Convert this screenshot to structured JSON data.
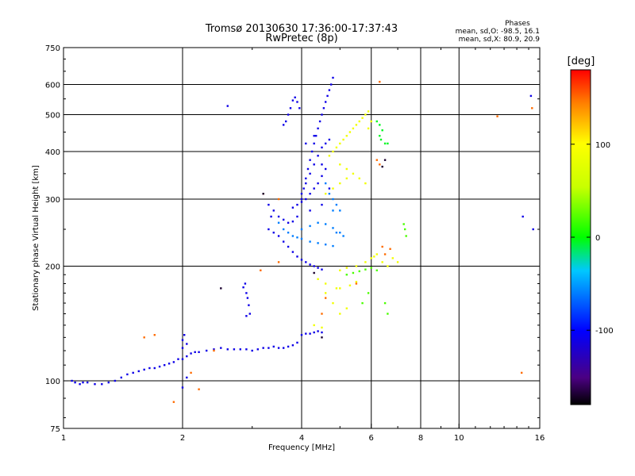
{
  "chart_data": {
    "type": "scatter",
    "title": "Tromsø 20130630 17:36:00-17:37:43",
    "subtitle": "RwPretec (8p)",
    "xlabel": "Frequency [MHz]",
    "ylabel": "Stationary phase Virtual Height [km]",
    "x_scale": "log",
    "y_scale": "log",
    "xlim": [
      1,
      16
    ],
    "ylim": [
      75,
      750
    ],
    "grid": true,
    "x_ticks": [
      "1",
      "2",
      "4",
      "6",
      "8",
      "10",
      "16"
    ],
    "x_tick_values": [
      1,
      2,
      4,
      6,
      8,
      10,
      16
    ],
    "y_ticks": [
      "75",
      "100",
      "200",
      "300",
      "400",
      "500",
      "600",
      "750"
    ],
    "y_tick_values": [
      75,
      100,
      200,
      300,
      400,
      500,
      600,
      750
    ],
    "colorbar": {
      "unit": "[deg]",
      "range": [
        -180,
        180
      ],
      "ticks": [
        "100",
        "0",
        "-100"
      ],
      "tick_values": [
        100,
        0,
        -100
      ]
    },
    "stats": {
      "header": "Phases",
      "line_o": "mean, sd,O: -98.5, 16.1",
      "line_x": "mean, sd,X:  80.9, 20.9"
    },
    "series": [
      {
        "phase": -110,
        "points": [
          [
            1.05,
            100
          ],
          [
            1.07,
            99
          ],
          [
            1.1,
            98
          ],
          [
            1.12,
            99
          ],
          [
            1.15,
            99
          ],
          [
            1.2,
            98
          ],
          [
            1.25,
            98
          ],
          [
            1.3,
            99
          ],
          [
            1.35,
            100
          ],
          [
            1.4,
            102
          ],
          [
            1.45,
            104
          ],
          [
            1.5,
            105
          ],
          [
            1.55,
            106
          ],
          [
            1.6,
            107
          ],
          [
            1.65,
            108
          ],
          [
            1.7,
            108
          ],
          [
            1.75,
            109
          ],
          [
            1.8,
            110
          ],
          [
            1.85,
            111
          ],
          [
            1.9,
            112
          ],
          [
            1.95,
            114
          ],
          [
            2.0,
            114
          ],
          [
            2.05,
            116
          ],
          [
            2.1,
            118
          ],
          [
            2.15,
            119
          ],
          [
            2.2,
            119
          ],
          [
            2.3,
            120
          ],
          [
            2.4,
            121
          ],
          [
            2.5,
            122
          ],
          [
            2.6,
            121
          ],
          [
            2.7,
            121
          ],
          [
            2.8,
            121
          ],
          [
            2.9,
            121
          ],
          [
            3.0,
            120
          ],
          [
            3.1,
            121
          ],
          [
            3.2,
            122
          ],
          [
            3.3,
            122
          ],
          [
            3.4,
            123
          ],
          [
            3.5,
            122
          ],
          [
            3.6,
            122
          ],
          [
            3.7,
            123
          ],
          [
            3.8,
            124
          ],
          [
            3.9,
            126
          ],
          [
            4.0,
            132
          ],
          [
            4.1,
            133
          ],
          [
            4.2,
            133
          ],
          [
            4.3,
            134
          ],
          [
            4.4,
            135
          ],
          [
            4.5,
            134
          ],
          [
            2.0,
            128
          ],
          [
            2.0,
            122
          ],
          [
            2.02,
            132
          ],
          [
            2.05,
            125
          ],
          [
            2.05,
            102
          ],
          [
            2.0,
            96
          ],
          [
            2.88,
            180
          ],
          [
            2.9,
            170
          ],
          [
            2.92,
            165
          ],
          [
            2.94,
            158
          ],
          [
            2.96,
            150
          ],
          [
            2.9,
            148
          ],
          [
            2.85,
            176
          ],
          [
            3.3,
            250
          ],
          [
            3.4,
            245
          ],
          [
            3.5,
            240
          ],
          [
            3.6,
            232
          ],
          [
            3.7,
            225
          ],
          [
            3.8,
            218
          ],
          [
            3.9,
            212
          ],
          [
            4.0,
            208
          ],
          [
            4.1,
            205
          ],
          [
            4.2,
            202
          ],
          [
            4.3,
            200
          ],
          [
            4.4,
            198
          ],
          [
            4.5,
            196
          ],
          [
            3.3,
            290
          ],
          [
            3.35,
            270
          ],
          [
            3.4,
            280
          ],
          [
            3.5,
            270
          ],
          [
            3.6,
            265
          ],
          [
            3.7,
            260
          ],
          [
            3.8,
            262
          ],
          [
            3.9,
            270
          ],
          [
            4.0,
            300
          ],
          [
            4.05,
            320
          ],
          [
            4.1,
            340
          ],
          [
            4.15,
            360
          ],
          [
            4.2,
            380
          ],
          [
            4.25,
            400
          ],
          [
            4.3,
            420
          ],
          [
            4.35,
            440
          ],
          [
            4.4,
            460
          ],
          [
            4.45,
            480
          ],
          [
            4.5,
            500
          ],
          [
            4.55,
            520
          ],
          [
            4.6,
            540
          ],
          [
            4.65,
            560
          ],
          [
            4.7,
            580
          ],
          [
            4.75,
            600
          ],
          [
            4.8,
            625
          ],
          [
            4.0,
            310
          ],
          [
            4.1,
            330
          ],
          [
            4.2,
            350
          ],
          [
            4.3,
            370
          ],
          [
            4.4,
            390
          ],
          [
            4.5,
            410
          ],
          [
            4.6,
            420
          ],
          [
            4.7,
            430
          ],
          [
            3.9,
            290
          ],
          [
            4.0,
            295
          ],
          [
            4.1,
            300
          ],
          [
            4.2,
            310
          ],
          [
            4.3,
            320
          ],
          [
            4.4,
            330
          ],
          [
            4.5,
            345
          ],
          [
            4.6,
            360
          ],
          [
            3.8,
            285
          ],
          [
            4.2,
            280
          ],
          [
            4.5,
            290
          ],
          [
            4.7,
            320
          ],
          [
            4.5,
            370
          ],
          [
            4.3,
            440
          ],
          [
            4.1,
            420
          ],
          [
            3.7,
            500
          ],
          [
            3.75,
            520
          ],
          [
            3.8,
            545
          ],
          [
            3.85,
            555
          ],
          [
            3.9,
            540
          ],
          [
            3.95,
            520
          ],
          [
            3.65,
            480
          ],
          [
            3.6,
            470
          ],
          [
            2.6,
            527
          ],
          [
            15.2,
            560
          ],
          [
            14.5,
            270
          ],
          [
            15.4,
            250
          ]
        ]
      },
      {
        "phase": -60,
        "points": [
          [
            3.5,
            260
          ],
          [
            3.6,
            250
          ],
          [
            3.7,
            245
          ],
          [
            3.8,
            240
          ],
          [
            3.9,
            238
          ],
          [
            4.0,
            236
          ],
          [
            4.2,
            232
          ],
          [
            4.4,
            230
          ],
          [
            4.6,
            228
          ],
          [
            4.8,
            226
          ],
          [
            4.0,
            250
          ],
          [
            4.2,
            255
          ],
          [
            4.4,
            260
          ],
          [
            4.6,
            258
          ],
          [
            4.8,
            252
          ],
          [
            5.0,
            245
          ],
          [
            4.6,
            330
          ],
          [
            4.7,
            310
          ],
          [
            4.8,
            300
          ],
          [
            4.9,
            290
          ],
          [
            5.0,
            280
          ],
          [
            4.8,
            280
          ],
          [
            4.9,
            245
          ],
          [
            5.1,
            240
          ]
        ]
      },
      {
        "phase": 20,
        "points": [
          [
            5.2,
            190
          ],
          [
            5.4,
            192
          ],
          [
            5.6,
            194
          ],
          [
            5.8,
            196
          ],
          [
            6.0,
            198
          ],
          [
            6.2,
            195
          ],
          [
            5.7,
            160
          ],
          [
            5.9,
            170
          ],
          [
            7.3,
            250
          ],
          [
            7.35,
            240
          ],
          [
            7.25,
            258
          ],
          [
            6.5,
            160
          ],
          [
            6.6,
            150
          ]
        ]
      },
      {
        "phase": 90,
        "points": [
          [
            4.7,
            390
          ],
          [
            4.8,
            400
          ],
          [
            4.9,
            410
          ],
          [
            5.0,
            420
          ],
          [
            5.1,
            430
          ],
          [
            5.2,
            440
          ],
          [
            5.3,
            450
          ],
          [
            5.4,
            460
          ],
          [
            5.5,
            470
          ],
          [
            5.6,
            480
          ],
          [
            5.7,
            490
          ],
          [
            5.8,
            500
          ],
          [
            5.9,
            510
          ],
          [
            5.0,
            370
          ],
          [
            5.2,
            360
          ],
          [
            5.4,
            350
          ],
          [
            5.6,
            340
          ],
          [
            5.8,
            330
          ],
          [
            4.6,
            310
          ],
          [
            4.8,
            320
          ],
          [
            5.0,
            330
          ],
          [
            5.2,
            340
          ],
          [
            4.4,
            185
          ],
          [
            4.6,
            180
          ],
          [
            4.9,
            175
          ],
          [
            5.0,
            175
          ],
          [
            5.3,
            178
          ],
          [
            5.5,
            182
          ],
          [
            4.6,
            170
          ],
          [
            4.8,
            160
          ],
          [
            5.0,
            150
          ],
          [
            5.2,
            155
          ],
          [
            4.3,
            140
          ],
          [
            4.5,
            138
          ],
          [
            6.0,
            210
          ],
          [
            6.2,
            215
          ],
          [
            6.4,
            205
          ],
          [
            6.6,
            200
          ],
          [
            6.8,
            210
          ],
          [
            7.0,
            205
          ],
          [
            5.0,
            195
          ],
          [
            5.2,
            198
          ],
          [
            5.5,
            200
          ],
          [
            5.8,
            205
          ],
          [
            6.1,
            212
          ],
          [
            5.9,
            460
          ],
          [
            6.0,
            480
          ]
        ]
      },
      {
        "phase": 150,
        "points": [
          [
            1.6,
            130
          ],
          [
            1.7,
            132
          ],
          [
            1.9,
            88
          ],
          [
            2.1,
            105
          ],
          [
            2.2,
            95
          ],
          [
            2.4,
            120
          ],
          [
            3.2,
            310
          ],
          [
            3.5,
            300
          ],
          [
            4.5,
            150
          ],
          [
            4.6,
            165
          ],
          [
            6.4,
            225
          ],
          [
            6.5,
            215
          ],
          [
            6.7,
            222
          ],
          [
            6.2,
            380
          ],
          [
            6.3,
            370
          ],
          [
            5.5,
            180
          ],
          [
            6.3,
            610
          ],
          [
            14.4,
            105
          ],
          [
            15.3,
            520
          ],
          [
            12.5,
            495
          ],
          [
            3.15,
            195
          ],
          [
            3.5,
            205
          ]
        ]
      },
      {
        "phase": -170,
        "points": [
          [
            6.5,
            380
          ],
          [
            6.4,
            365
          ],
          [
            2.5,
            175
          ],
          [
            3.2,
            310
          ],
          [
            4.3,
            192
          ],
          [
            4.5,
            130
          ]
        ]
      },
      {
        "phase": -5,
        "points": [
          [
            6.2,
            480
          ],
          [
            6.3,
            470
          ],
          [
            6.4,
            455
          ],
          [
            6.3,
            440
          ],
          [
            6.35,
            430
          ],
          [
            6.5,
            420
          ],
          [
            6.6,
            420
          ]
        ]
      }
    ]
  }
}
